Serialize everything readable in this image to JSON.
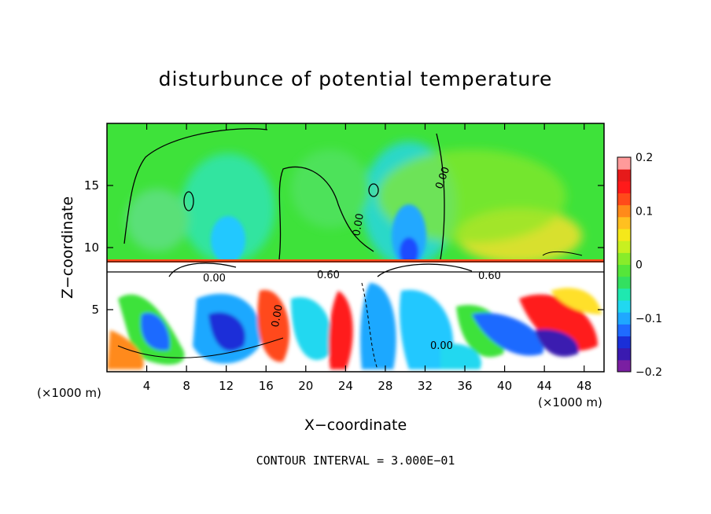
{
  "chart_data": {
    "type": "heatmap",
    "title": "disturbunce of potential temperature",
    "xlabel": "X−coordinate",
    "ylabel": "Z−coordinate",
    "x_unit_left": "(×1000 m)",
    "x_unit_right": "(×1000 m)",
    "xlim": [
      0,
      50
    ],
    "ylim": [
      0,
      20
    ],
    "x_ticks": [
      "4",
      "8",
      "12",
      "16",
      "20",
      "24",
      "28",
      "32",
      "36",
      "40",
      "44",
      "48"
    ],
    "x_tick_values": [
      4,
      8,
      12,
      16,
      20,
      24,
      28,
      32,
      36,
      40,
      44,
      48
    ],
    "y_ticks": [
      "5",
      "10",
      "15"
    ],
    "y_tick_values": [
      5,
      10,
      15
    ],
    "colorbar": {
      "range": [
        -0.2,
        0.2
      ],
      "tick_labels": [
        "0.2",
        "0.1",
        "0",
        "−0.1",
        "−0.2"
      ],
      "tick_values": [
        0.2,
        0.1,
        0,
        -0.1,
        -0.2
      ],
      "colors": [
        "#7a1fa2",
        "#3a1ab0",
        "#1a2fd8",
        "#1f6bff",
        "#1fa8ff",
        "#21d8f0",
        "#1fe8b0",
        "#33e060",
        "#55e63a",
        "#88ec2a",
        "#c8f020",
        "#f5e81a",
        "#ffc020",
        "#ff8a1a",
        "#ff4a1a",
        "#ff1a1a",
        "#e61a1a",
        "#ff9a9a"
      ]
    },
    "contour_labels": [
      "0.00",
      "0.00",
      "0.00",
      "0.00",
      "0.60",
      "0.60",
      "0.00",
      "0.00",
      "0.00",
      "0.00"
    ],
    "grid": false,
    "legend": "colorbar-right"
  },
  "footer": "CONTOUR INTERVAL = 3.000E−01"
}
